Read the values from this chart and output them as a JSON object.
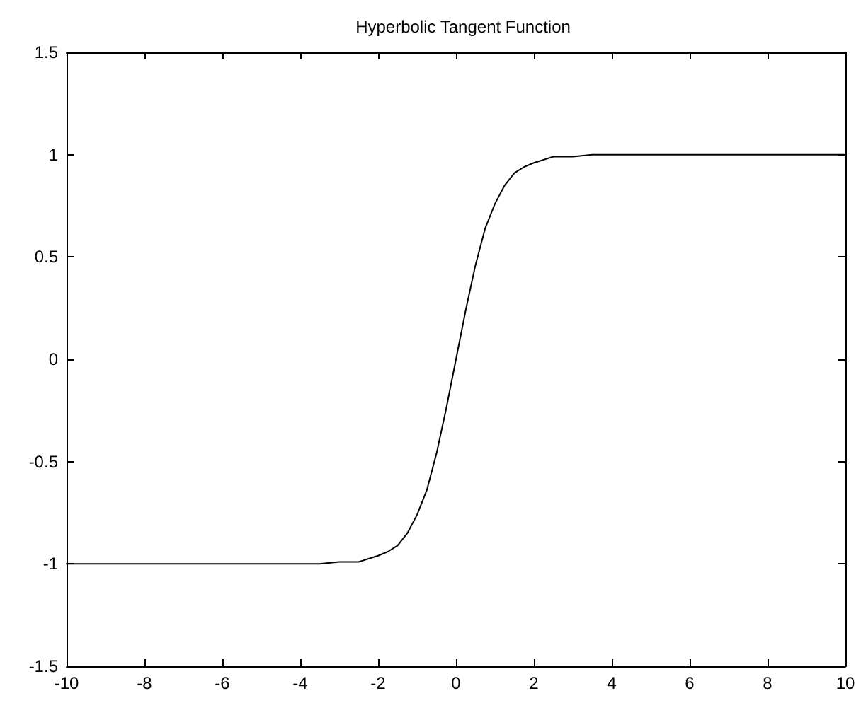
{
  "chart_data": {
    "type": "line",
    "title": "Hyperbolic Tangent Function",
    "x": [
      -10,
      -8,
      -6,
      -5,
      -4.5,
      -4,
      -3.5,
      -3,
      -2.5,
      -2,
      -1.75,
      -1.5,
      -1.25,
      -1,
      -0.75,
      -0.5,
      -0.25,
      0,
      0.25,
      0.5,
      0.75,
      1,
      1.25,
      1.5,
      1.75,
      2,
      2.5,
      3,
      3.5,
      4,
      4.5,
      5,
      6,
      8,
      10
    ],
    "series": [
      {
        "color": "#000000",
        "values": [
          -1,
          -1,
          -1,
          -1,
          -1,
          -1,
          -1,
          -0.99,
          -0.99,
          -0.96,
          -0.94,
          -0.91,
          -0.85,
          -0.76,
          -0.64,
          -0.46,
          -0.24,
          0,
          0.24,
          0.46,
          0.64,
          0.76,
          0.85,
          0.91,
          0.94,
          0.96,
          0.99,
          0.99,
          1,
          1,
          1,
          1,
          1,
          1,
          1
        ]
      }
    ],
    "xlim": [
      -10,
      10
    ],
    "xticks": [
      -10,
      -8,
      -6,
      -4,
      -2,
      0,
      2,
      4,
      6,
      8,
      10
    ],
    "ylim": [
      -1.5,
      1.5
    ],
    "yticks": [
      -1.5,
      -1,
      -0.5,
      0,
      0.5,
      1,
      1.5
    ],
    "marker": "none",
    "line_style": "solid"
  }
}
